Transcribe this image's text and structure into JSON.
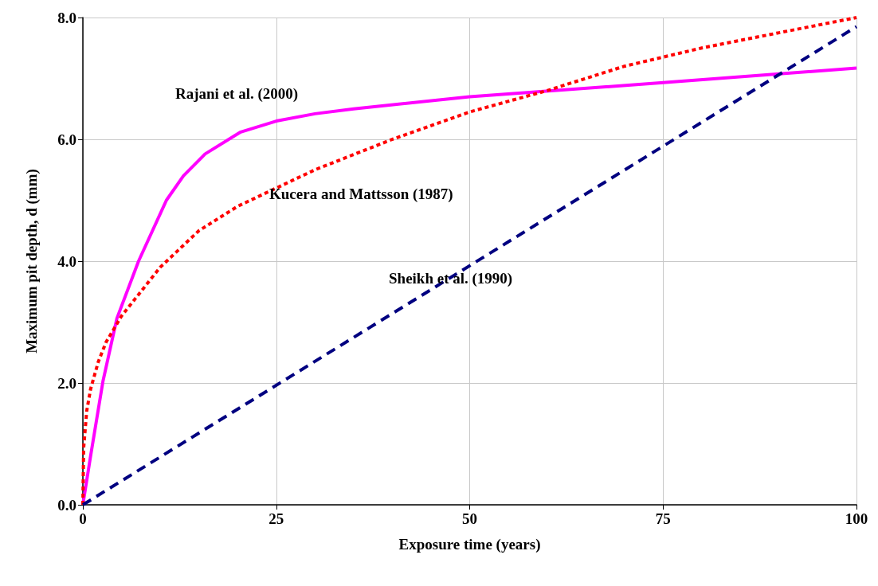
{
  "chart_data": {
    "type": "line",
    "xlabel": "Exposure time (years)",
    "ylabel": "Maximum pit depth, d (mm)",
    "xlim": [
      0,
      100
    ],
    "xticks": [
      0,
      25,
      50,
      75,
      100
    ],
    "ylim": [
      0,
      8
    ],
    "yticks": [
      {
        "value": 0,
        "label": "0.0"
      },
      {
        "value": 2,
        "label": "2.0"
      },
      {
        "value": 4,
        "label": "4.0"
      },
      {
        "value": 6,
        "label": "6.0"
      },
      {
        "value": 8,
        "label": "8.0"
      }
    ],
    "grid": true,
    "marker": "none",
    "series": [
      {
        "color": "#ff00ff",
        "line_style": "solid",
        "x": [
          0,
          1,
          2.6,
          4.4,
          7.2,
          10.8,
          13,
          15.8,
          20.4,
          25,
          30,
          35,
          50,
          75,
          100
        ],
        "values": [
          0,
          0.8,
          2.03,
          3.06,
          4.0,
          5.0,
          5.4,
          5.76,
          6.12,
          6.3,
          6.42,
          6.5,
          6.7,
          6.93,
          7.17
        ]
      },
      {
        "color": "#ff0000",
        "line_style": "dotted",
        "x": [
          0,
          0.1,
          0.5,
          1,
          2,
          3,
          5,
          7.5,
          10,
          15,
          20,
          25,
          30,
          40,
          50,
          60,
          70,
          80,
          90,
          100
        ],
        "values": [
          0,
          0.93,
          1.54,
          1.9,
          2.35,
          2.67,
          3.1,
          3.5,
          3.9,
          4.5,
          4.9,
          5.2,
          5.5,
          6.0,
          6.45,
          6.8,
          7.2,
          7.5,
          7.75,
          8.0
        ]
      },
      {
        "color": "#000080",
        "line_style": "dashed",
        "x": [
          0,
          100
        ],
        "values": [
          0,
          7.85
        ]
      }
    ],
    "annotations": [
      "Rajani et al. (2000)",
      "Kucera and Mattsson (1987)",
      "Sheikh et al. (1990)"
    ]
  }
}
